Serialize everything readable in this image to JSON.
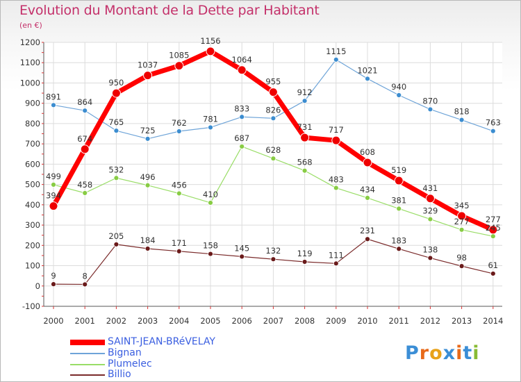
{
  "chart_data": {
    "type": "line",
    "title": "Evolution du Montant de la Dette par Habitant",
    "subtitle": "(en €)",
    "x": [
      "2000",
      "2001",
      "2002",
      "2003",
      "2004",
      "2005",
      "2006",
      "2007",
      "2008",
      "2009",
      "2010",
      "2011",
      "2012",
      "2013",
      "2014"
    ],
    "ylim": [
      -100,
      1200
    ],
    "yticks": [
      -100,
      0,
      100,
      200,
      300,
      400,
      500,
      600,
      700,
      800,
      900,
      1000,
      1100,
      1200
    ],
    "grid": true,
    "legend_position": "bottom-left",
    "series": [
      {
        "name": "SAINT-JEAN-BRéVELAY",
        "color": "#ff0000",
        "marker_color": "#ee0000",
        "width": 7,
        "values": [
          394,
          674,
          950,
          1037,
          1085,
          1156,
          1064,
          955,
          731,
          717,
          608,
          519,
          431,
          345,
          277
        ]
      },
      {
        "name": "Bignan",
        "color": "#6ea4d8",
        "marker_color": "#3c8dd0",
        "width": 1.2,
        "values": [
          891,
          864,
          765,
          725,
          762,
          781,
          833,
          826,
          912,
          1115,
          1021,
          940,
          870,
          818,
          763
        ]
      },
      {
        "name": "Plumelec",
        "color": "#99dd66",
        "marker_color": "#88cc44",
        "width": 1.2,
        "values": [
          499,
          458,
          532,
          496,
          456,
          410,
          687,
          628,
          568,
          483,
          434,
          381,
          329,
          277,
          245
        ]
      },
      {
        "name": "Billio",
        "color": "#7a2a2a",
        "marker_color": "#6a1a1a",
        "width": 1.2,
        "values": [
          9,
          8,
          205,
          184,
          171,
          158,
          145,
          132,
          119,
          111,
          231,
          183,
          138,
          98,
          61
        ]
      }
    ]
  },
  "logo": {
    "letters": [
      "P",
      "r",
      "o",
      "x",
      "i",
      "t",
      "i"
    ],
    "colors": [
      "#3b8ed6",
      "#e86a1a",
      "#e8a21a",
      "#3b8ed6",
      "#e86a1a",
      "#3b8ed6",
      "#88bb33"
    ]
  }
}
